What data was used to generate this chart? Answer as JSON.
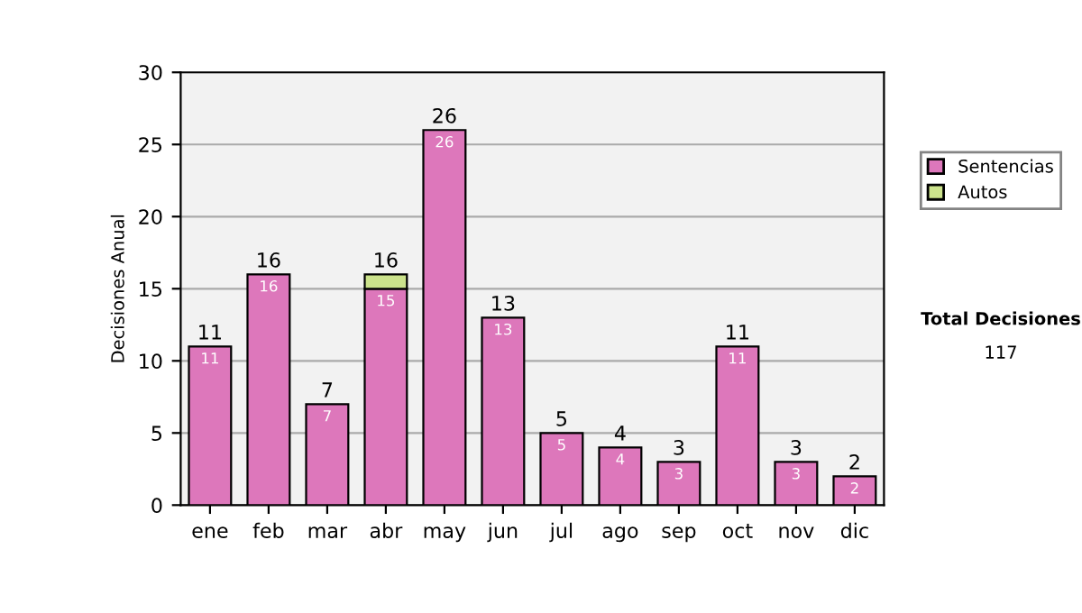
{
  "chart_data": {
    "type": "bar",
    "stacked": true,
    "ylabel": "Decisiones Anual",
    "categories": [
      "ene",
      "feb",
      "mar",
      "abr",
      "may",
      "jun",
      "jul",
      "ago",
      "sep",
      "oct",
      "nov",
      "dic"
    ],
    "series": [
      {
        "name": "Sentencias",
        "color": "#dd77bb",
        "values": [
          11,
          16,
          7,
          15,
          26,
          13,
          5,
          4,
          3,
          11,
          3,
          2
        ],
        "value_labels": [
          "11",
          "16",
          "7",
          "15",
          "26",
          "13",
          "5",
          "4",
          "3",
          "11",
          "3",
          "2"
        ]
      },
      {
        "name": "Autos",
        "color": "#cce38c",
        "values": [
          null,
          null,
          null,
          1,
          null,
          null,
          null,
          null,
          null,
          null,
          null,
          null
        ]
      }
    ],
    "totals": [
      "11",
      "16",
      "7",
      "16",
      "26",
      "13",
      "5",
      "4",
      "3",
      "11",
      "3",
      "2"
    ],
    "ylim": [
      0,
      30
    ],
    "yticks": [
      0,
      5,
      10,
      15,
      20,
      25,
      30
    ],
    "grid": "y",
    "legend": "right",
    "annotations": [
      "Total Decisiones",
      "117"
    ]
  }
}
